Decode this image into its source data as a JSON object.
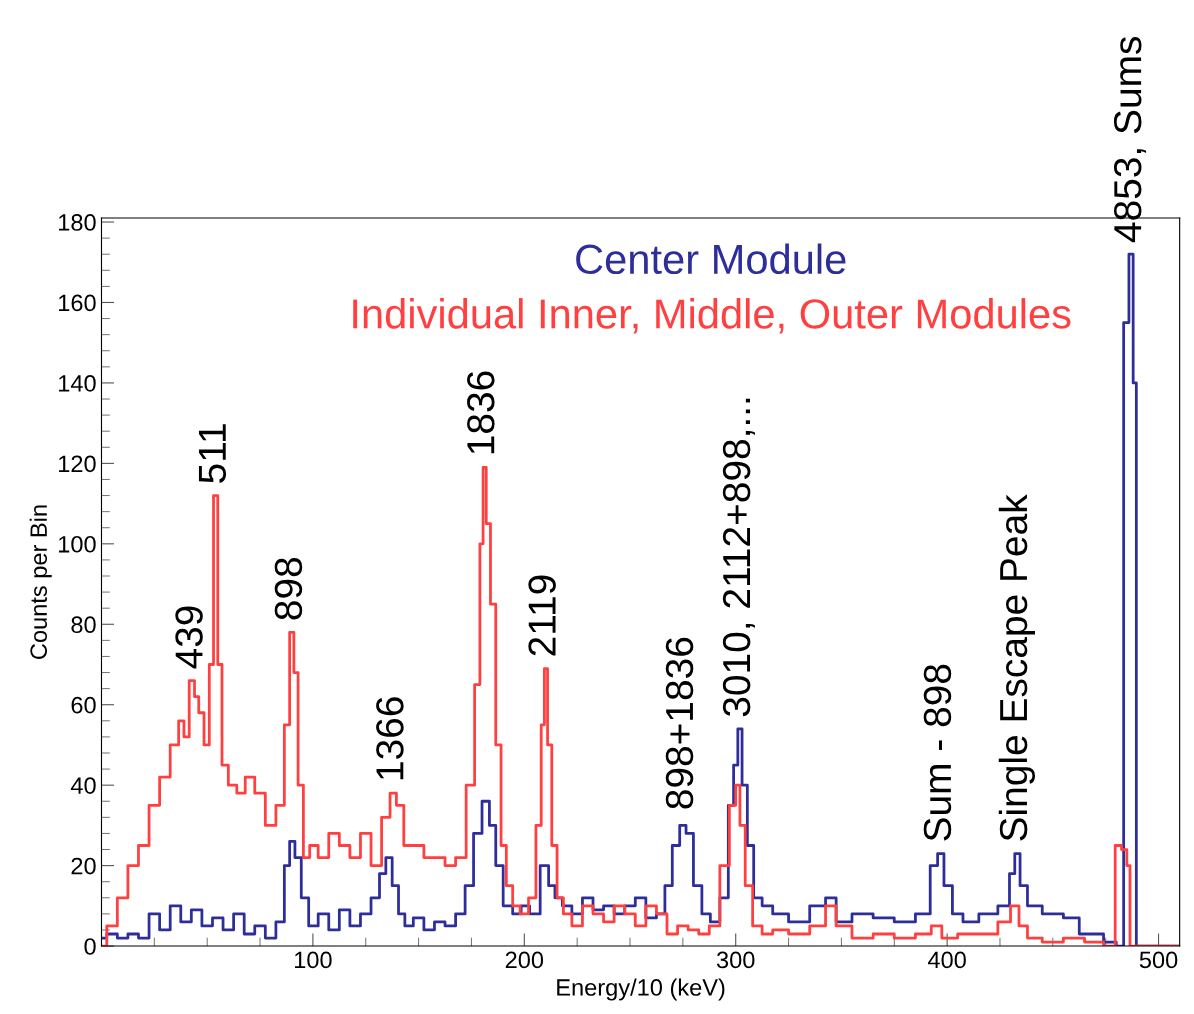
{
  "chart_data": {
    "type": "step",
    "xlabel": "Energy/10 (keV)",
    "ylabel": "Counts per Bin",
    "xlim": [
      0,
      510
    ],
    "xticks": [
      100,
      200,
      300,
      400,
      500
    ],
    "ylim": [
      0,
      181
    ],
    "yticks": [
      0,
      20,
      40,
      60,
      80,
      100,
      120,
      140,
      160,
      180
    ],
    "grid": false,
    "legend": false,
    "series": [
      {
        "name": "Center Module",
        "color": "#2e2e9a",
        "x": [
          0,
          5,
          10,
          15,
          20,
          25,
          30,
          35,
          40,
          45,
          50,
          55,
          60,
          65,
          70,
          75,
          80,
          85,
          88,
          90,
          93,
          96,
          100,
          105,
          110,
          115,
          120,
          125,
          130,
          133,
          136,
          139,
          142,
          145,
          150,
          155,
          160,
          165,
          170,
          174,
          178,
          182,
          185,
          188,
          192,
          197,
          200,
          205,
          210,
          213,
          216,
          220,
          225,
          230,
          235,
          240,
          245,
          250,
          255,
          260,
          265,
          268,
          272,
          275,
          278,
          282,
          286,
          290,
          295,
          298,
          300,
          302,
          304,
          307,
          310,
          315,
          320,
          330,
          340,
          345,
          350,
          360,
          370,
          380,
          390,
          394,
          397,
          400,
          405,
          410,
          420,
          428,
          431,
          433,
          436,
          440,
          450,
          460,
          465,
          470,
          478,
          482,
          485,
          487,
          489,
          490,
          500,
          510
        ],
        "values": [
          2,
          3,
          2,
          3,
          2,
          8,
          4,
          10,
          6,
          9,
          5,
          7,
          4,
          8,
          3,
          5,
          2,
          6,
          20,
          26,
          22,
          12,
          5,
          8,
          4,
          9,
          5,
          8,
          12,
          18,
          22,
          15,
          8,
          5,
          7,
          4,
          6,
          5,
          8,
          15,
          28,
          36,
          30,
          20,
          10,
          8,
          10,
          8,
          20,
          15,
          12,
          10,
          8,
          12,
          9,
          10,
          8,
          10,
          12,
          7,
          8,
          15,
          25,
          30,
          28,
          15,
          8,
          6,
          12,
          35,
          45,
          54,
          40,
          25,
          12,
          10,
          8,
          6,
          10,
          12,
          6,
          8,
          7,
          6,
          8,
          20,
          23,
          15,
          8,
          6,
          8,
          10,
          18,
          23,
          15,
          10,
          8,
          7,
          3,
          3,
          1,
          0,
          155,
          172,
          140,
          0,
          0,
          0
        ]
      },
      {
        "name": "Individual Inner, Middle, Outer Modules",
        "color": "#ff4040",
        "x": [
          0,
          5,
          10,
          15,
          20,
          25,
          30,
          35,
          38,
          40,
          43,
          45,
          47,
          50,
          52,
          54,
          56,
          58,
          62,
          66,
          70,
          75,
          80,
          85,
          88,
          90,
          92,
          94,
          97,
          100,
          105,
          110,
          115,
          120,
          125,
          130,
          135,
          138,
          141,
          145,
          150,
          155,
          160,
          165,
          170,
          175,
          178,
          180,
          181,
          183,
          185,
          188,
          190,
          193,
          196,
          200,
          204,
          207,
          209,
          210,
          212,
          214,
          217,
          220,
          225,
          230,
          235,
          240,
          245,
          250,
          255,
          260,
          265,
          270,
          275,
          280,
          285,
          290,
          295,
          299,
          301,
          303,
          306,
          310,
          315,
          320,
          330,
          340,
          345,
          350,
          360,
          370,
          380,
          390,
          395,
          400,
          410,
          420,
          428,
          432,
          436,
          440,
          450,
          460,
          470,
          478,
          481,
          484,
          486,
          487,
          500,
          510
        ],
        "values": [
          0,
          5,
          12,
          20,
          25,
          35,
          42,
          50,
          56,
          52,
          66,
          62,
          58,
          50,
          70,
          112,
          70,
          45,
          40,
          38,
          42,
          38,
          30,
          35,
          55,
          78,
          68,
          40,
          22,
          25,
          22,
          28,
          25,
          22,
          28,
          20,
          32,
          38,
          35,
          25,
          25,
          22,
          22,
          20,
          22,
          40,
          65,
          100,
          119,
          105,
          85,
          50,
          25,
          15,
          10,
          8,
          12,
          30,
          55,
          69,
          50,
          25,
          12,
          8,
          5,
          10,
          8,
          6,
          10,
          8,
          5,
          10,
          8,
          3,
          5,
          4,
          3,
          5,
          20,
          35,
          40,
          30,
          15,
          5,
          3,
          4,
          3,
          5,
          10,
          5,
          2,
          3,
          2,
          3,
          5,
          2,
          3,
          3,
          6,
          10,
          5,
          2,
          1,
          2,
          1,
          0,
          25,
          24,
          20,
          0,
          0,
          0
        ]
      }
    ],
    "annotations": [
      {
        "text": "439",
        "x": 43,
        "y": 66
      },
      {
        "text": "511",
        "x": 54,
        "y": 112
      },
      {
        "text": "898",
        "x": 90,
        "y": 78
      },
      {
        "text": "1366",
        "x": 138,
        "y": 38
      },
      {
        "text": "1836",
        "x": 181,
        "y": 119
      },
      {
        "text": "2119",
        "x": 210,
        "y": 69
      },
      {
        "text": "898+1836",
        "x": 275,
        "y": 31
      },
      {
        "text": "3010, 2112+898,...",
        "x": 302,
        "y": 54
      },
      {
        "text": "Sum - 898",
        "x": 397,
        "y": 23
      },
      {
        "text": "Single Escape Peak",
        "x": 433,
        "y": 23
      },
      {
        "text": "4853, Sums",
        "x": 487,
        "y": 172
      }
    ]
  }
}
